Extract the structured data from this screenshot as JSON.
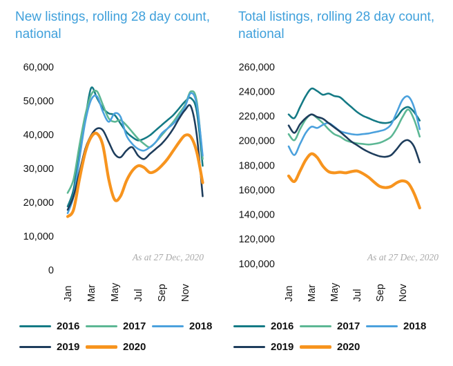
{
  "chart_data": [
    {
      "type": "line",
      "title": "New listings, rolling 28 day count, national",
      "note": "As at 27 Dec, 2020",
      "ylim": [
        0,
        60000
      ],
      "ytick_step": 10000,
      "yticks": [
        "60,000",
        "50,000",
        "40,000",
        "30,000",
        "20,000",
        "10,000",
        "0"
      ],
      "xticks": [
        "Jan",
        "Mar",
        "May",
        "Jul",
        "Sep",
        "Nov"
      ],
      "xtick_months": [
        0,
        2,
        4,
        6,
        8,
        10
      ],
      "x_resolution": "half-month steps from Jan (0) to late Dec (11.5)",
      "grid": false,
      "legend_position": "bottom",
      "series": [
        {
          "name": "2016",
          "color": "#147a85",
          "thick": false,
          "values": [
            19000,
            24000,
            35000,
            45000,
            54000,
            51000,
            48000,
            46500,
            46000,
            43500,
            41000,
            39500,
            38500,
            39000,
            40000,
            41500,
            43000,
            44500,
            46000,
            48000,
            50000,
            51000,
            47000,
            31000
          ]
        },
        {
          "name": "2017",
          "color": "#5cb794",
          "thick": false,
          "values": [
            23000,
            27000,
            37000,
            46000,
            52000,
            53000,
            49000,
            45000,
            44000,
            44500,
            43000,
            41000,
            39000,
            37500,
            36500,
            38000,
            40000,
            42000,
            44000,
            46500,
            49000,
            53000,
            50000,
            33000
          ]
        },
        {
          "name": "2018",
          "color": "#4ba1dd",
          "thick": false,
          "values": [
            17000,
            22000,
            33000,
            44000,
            50500,
            51500,
            47000,
            44000,
            46500,
            45500,
            40000,
            37500,
            36000,
            35500,
            36500,
            38000,
            40500,
            42000,
            43500,
            45500,
            48500,
            52500,
            49000,
            34000
          ]
        },
        {
          "name": "2019",
          "color": "#1e3d5c",
          "thick": false,
          "values": [
            18000,
            22000,
            29000,
            36000,
            40000,
            42000,
            41500,
            38000,
            34500,
            33500,
            35500,
            36500,
            34000,
            33000,
            34500,
            36000,
            37500,
            39500,
            42000,
            45000,
            47500,
            48500,
            40000,
            22000
          ]
        },
        {
          "name": "2020",
          "color": "#f7941e",
          "thick": true,
          "values": [
            16000,
            18000,
            27000,
            35000,
            39500,
            40500,
            37000,
            27000,
            21000,
            22000,
            26500,
            29500,
            31000,
            30500,
            29000,
            29500,
            31000,
            33000,
            35500,
            38000,
            40000,
            39500,
            35000,
            26000
          ]
        }
      ]
    },
    {
      "type": "line",
      "title": "Total listings, rolling 28 day count, national",
      "note": "As at 27 Dec, 2020",
      "ylim": [
        100000,
        260000
      ],
      "ytick_step": 20000,
      "yticks": [
        "260,000",
        "240,000",
        "220,000",
        "200,000",
        "180,000",
        "160,000",
        "140,000",
        "120,000",
        "100,000"
      ],
      "xticks": [
        "Jan",
        "Mar",
        "May",
        "Jul",
        "Sep",
        "Nov"
      ],
      "xtick_months": [
        0,
        2,
        4,
        6,
        8,
        10
      ],
      "x_resolution": "half-month steps from Jan (0) to late Dec (11.5)",
      "grid": false,
      "legend_position": "bottom",
      "series": [
        {
          "name": "2016",
          "color": "#147a85",
          "thick": false,
          "values": [
            222000,
            219000,
            228000,
            237000,
            243000,
            241000,
            238000,
            239000,
            237000,
            236000,
            232000,
            228000,
            224000,
            221000,
            219000,
            217000,
            215500,
            215000,
            216000,
            220000,
            226000,
            228000,
            224000,
            217000
          ]
        },
        {
          "name": "2017",
          "color": "#5cb794",
          "thick": false,
          "values": [
            206000,
            201000,
            210000,
            218000,
            222000,
            219000,
            215000,
            210000,
            206000,
            204000,
            201000,
            199500,
            198500,
            198000,
            197500,
            198000,
            199000,
            201000,
            204000,
            211000,
            220000,
            226000,
            218000,
            204000
          ]
        },
        {
          "name": "2018",
          "color": "#4ba1dd",
          "thick": false,
          "values": [
            196000,
            189000,
            198000,
            207000,
            212000,
            211000,
            213500,
            215000,
            212000,
            208500,
            207000,
            206000,
            205500,
            206000,
            206500,
            207500,
            208500,
            210000,
            214000,
            224000,
            234000,
            236500,
            228000,
            210000
          ]
        },
        {
          "name": "2019",
          "color": "#1e3d5c",
          "thick": false,
          "values": [
            213000,
            207000,
            214000,
            219000,
            222000,
            220000,
            218500,
            215000,
            211500,
            208000,
            204000,
            200000,
            197000,
            194000,
            191500,
            189500,
            188000,
            187500,
            189000,
            194000,
            199500,
            201000,
            196000,
            183000
          ]
        },
        {
          "name": "2020",
          "color": "#f7941e",
          "thick": true,
          "values": [
            172000,
            167500,
            176000,
            185000,
            190000,
            187000,
            180000,
            175500,
            174500,
            175000,
            174500,
            175500,
            176000,
            174000,
            171000,
            167000,
            163500,
            162500,
            163500,
            166500,
            168000,
            166000,
            158000,
            146000
          ]
        }
      ]
    }
  ],
  "colors": {
    "title_blue": "#3fa0db",
    "note_gray": "#a9a9a9",
    "tick_text": "#111111",
    "series_2016": "#147a85",
    "series_2017": "#5cb794",
    "series_2018": "#4ba1dd",
    "series_2019": "#1e3d5c",
    "series_2020": "#f7941e"
  }
}
